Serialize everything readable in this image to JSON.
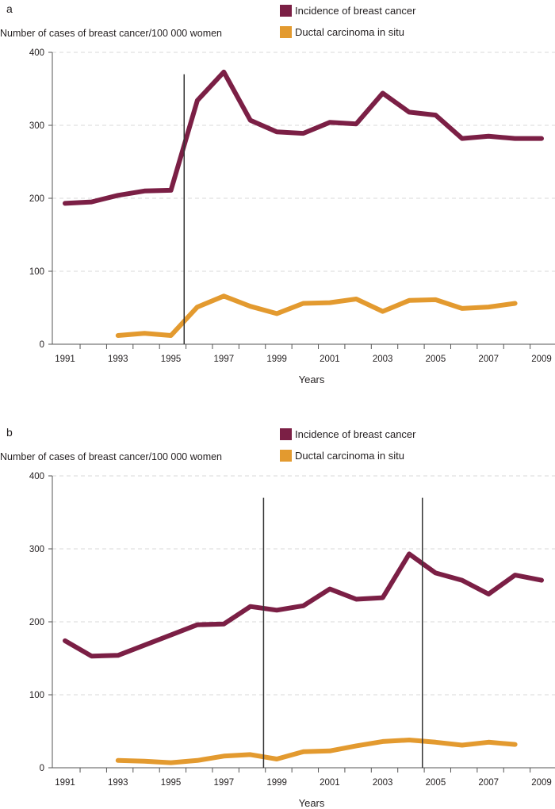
{
  "colors": {
    "incidence": "#7b1f45",
    "dcis": "#e39a2f",
    "axis": "#555555",
    "grid": "#d8d8d8",
    "marker_line": "#333333"
  },
  "chart_data": [
    {
      "type": "line",
      "panel_label": "a",
      "ylabel": "Number of cases of breast cancer/100 000 women",
      "xlabel": "Years",
      "ylim": [
        0,
        400
      ],
      "yticks": [
        0,
        100,
        200,
        300,
        400
      ],
      "xlim": [
        1991,
        2009
      ],
      "xtick_labels": [
        "1991",
        "1993",
        "1995",
        "1997",
        "1999",
        "2001",
        "2003",
        "2005",
        "2007",
        "2009"
      ],
      "grid": "horizontal dashed",
      "legend_placement": "top-right",
      "vertical_markers": [
        1995.5
      ],
      "series": [
        {
          "name": "Incidence of breast cancer",
          "color_key": "incidence",
          "x": [
            1991,
            1992,
            1993,
            1994,
            1995,
            1996,
            1997,
            1998,
            1999,
            2000,
            2001,
            2002,
            2003,
            2004,
            2005,
            2006,
            2007,
            2008,
            2009
          ],
          "values": [
            193,
            195,
            204,
            210,
            211,
            334,
            373,
            307,
            291,
            289,
            304,
            302,
            344,
            318,
            314,
            282,
            285,
            282,
            282
          ]
        },
        {
          "name": "Ductal carcinoma in situ",
          "color_key": "dcis",
          "x": [
            1993,
            1994,
            1995,
            1996,
            1997,
            1998,
            1999,
            2000,
            2001,
            2002,
            2003,
            2004,
            2005,
            2006,
            2007,
            2008
          ],
          "values": [
            12,
            15,
            12,
            51,
            66,
            52,
            42,
            56,
            57,
            62,
            45,
            60,
            61,
            49,
            51,
            56
          ]
        }
      ]
    },
    {
      "type": "line",
      "panel_label": "b",
      "ylabel": "Number of cases of breast cancer/100 000 women",
      "xlabel": "Years",
      "ylim": [
        0,
        400
      ],
      "yticks": [
        0,
        100,
        200,
        300,
        400
      ],
      "xlim": [
        1991,
        2009
      ],
      "xtick_labels": [
        "1991",
        "1993",
        "1995",
        "1997",
        "1999",
        "2001",
        "2003",
        "2005",
        "2007",
        "2009"
      ],
      "grid": "horizontal dashed",
      "legend_placement": "top-right",
      "vertical_markers": [
        1998.5,
        2004.5
      ],
      "series": [
        {
          "name": "Incidence of breast cancer",
          "color_key": "incidence",
          "x": [
            1991,
            1992,
            1993,
            1994,
            1995,
            1996,
            1997,
            1998,
            1999,
            2000,
            2001,
            2002,
            2003,
            2004,
            2005,
            2006,
            2007,
            2008,
            2009
          ],
          "values": [
            174,
            153,
            154,
            168,
            182,
            196,
            197,
            221,
            216,
            222,
            245,
            231,
            233,
            293,
            267,
            257,
            238,
            264,
            257
          ]
        },
        {
          "name": "Ductal carcinoma in situ",
          "color_key": "dcis",
          "x": [
            1993,
            1994,
            1995,
            1996,
            1997,
            1998,
            1999,
            2000,
            2001,
            2002,
            2003,
            2004,
            2005,
            2006,
            2007,
            2008
          ],
          "values": [
            10,
            9,
            7,
            10,
            16,
            18,
            12,
            22,
            23,
            30,
            36,
            38,
            35,
            31,
            35,
            32
          ]
        }
      ]
    }
  ]
}
